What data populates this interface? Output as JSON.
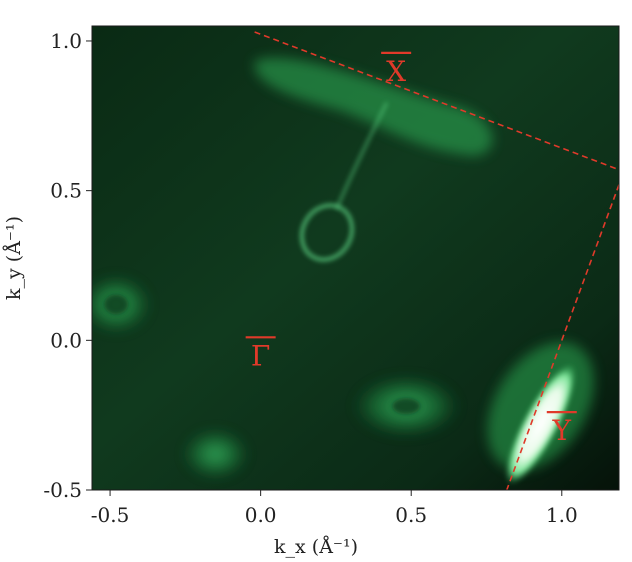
{
  "chart_data": {
    "type": "heatmap",
    "title": "",
    "xlabel": "k_x (Å⁻¹)",
    "ylabel": "k_y (Å⁻¹)",
    "xlim": [
      -0.56,
      1.19
    ],
    "ylim": [
      -0.5,
      1.05
    ],
    "xticks": [
      "-0.5",
      "0.0",
      "0.5",
      "1.0"
    ],
    "xtick_values": [
      -0.5,
      0.0,
      0.5,
      1.0
    ],
    "yticks": [
      "-0.5",
      "0.0",
      "0.5",
      "1.0"
    ],
    "ytick_values": [
      -0.5,
      0.0,
      0.5,
      1.0
    ],
    "colormap": [
      "#061a0c",
      "#0d4a22",
      "#1f9a45",
      "#3fc86a",
      "#ffffff"
    ],
    "high_symbol_points": [
      {
        "label": "Γ",
        "x": 0.0,
        "y": -0.05
      },
      {
        "label": "X",
        "x": 0.45,
        "y": 0.9
      },
      {
        "label": "Y",
        "x": 1.0,
        "y": -0.3
      }
    ],
    "zone_boundaries": [
      {
        "name": "X-boundary",
        "x1": -0.02,
        "y1": 1.03,
        "x2": 1.19,
        "y2": 0.57
      },
      {
        "name": "Y-boundary",
        "x1": 1.19,
        "y1": 0.52,
        "x2": 0.81,
        "y2": -0.52
      }
    ],
    "intensity_features": [
      {
        "name": "upper-band",
        "x": 0.38,
        "y": 0.8,
        "intensity": 0.55
      },
      {
        "name": "teardrop-pocket",
        "x": 0.22,
        "y": 0.36,
        "intensity": 0.45
      },
      {
        "name": "left-pocket",
        "x": -0.48,
        "y": 0.12,
        "intensity": 0.5
      },
      {
        "name": "lower-center-pocket",
        "x": 0.55,
        "y": -0.22,
        "intensity": 0.5
      },
      {
        "name": "lower-left-pocket",
        "x": -0.15,
        "y": -0.38,
        "intensity": 0.45
      },
      {
        "name": "bright-lobe",
        "x": 0.93,
        "y": -0.22,
        "intensity": 1.0
      }
    ]
  }
}
